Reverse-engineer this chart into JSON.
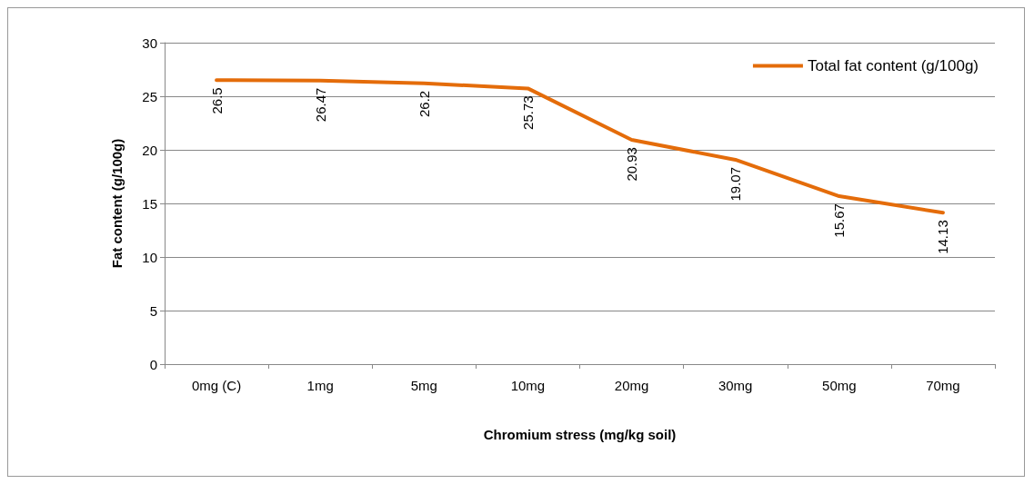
{
  "chart_data": {
    "type": "line",
    "xlabel": "Chromium stress (mg/kg soil)",
    "ylabel": "Fat content (g/100g)",
    "categories": [
      "0mg (C)",
      "1mg",
      "5mg",
      "10mg",
      "20mg",
      "30mg",
      "50mg",
      "70mg"
    ],
    "series": [
      {
        "name": "Total fat content (g/100g)",
        "color": "#e46c0a",
        "values": [
          26.5,
          26.47,
          26.2,
          25.73,
          20.93,
          19.07,
          15.67,
          14.13
        ]
      }
    ],
    "ylim": [
      0,
      30
    ],
    "yticks": [
      0,
      5,
      10,
      15,
      20,
      25,
      30
    ],
    "grid": "y",
    "legend": "top right",
    "data_labels": true,
    "marker": "none",
    "line_style": "solid"
  }
}
